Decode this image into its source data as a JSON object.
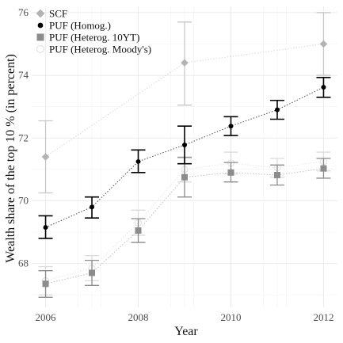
{
  "chart_data": {
    "type": "scatter",
    "xlabel": "Year",
    "ylabel": "Wealth share of the top  10 % (in percent)",
    "xlim": [
      2005.7,
      2012.3
    ],
    "ylim": [
      66.6,
      76.2
    ],
    "xticks": [
      2006,
      2008,
      2010,
      2012
    ],
    "yticks": [
      68,
      70,
      72,
      74,
      76
    ],
    "grid": true,
    "legend_position": "top-left",
    "series": [
      {
        "name": "SCF",
        "marker": "diamond",
        "color": "#b3b3b3",
        "line_color": "#d9d9d9",
        "x": [
          2006,
          2009,
          2012
        ],
        "y": [
          71.4,
          74.4,
          75.0
        ],
        "ci_low": [
          70.25,
          73.05,
          74.0
        ],
        "ci_high": [
          72.55,
          75.7,
          76.0
        ]
      },
      {
        "name": "PUF (Homog.)",
        "marker": "circle",
        "color": "#000000",
        "line_color": "#4d4d4d",
        "x": [
          2006,
          2007,
          2008,
          2009,
          2010,
          2011,
          2012
        ],
        "y": [
          69.15,
          69.8,
          71.25,
          71.78,
          72.38,
          72.9,
          73.62
        ],
        "ci_low": [
          68.8,
          69.45,
          70.9,
          71.18,
          72.08,
          72.6,
          73.3
        ],
        "ci_high": [
          69.52,
          70.12,
          71.62,
          72.38,
          72.68,
          73.2,
          73.93
        ]
      },
      {
        "name": "PUF (Heterog. 10YT)",
        "marker": "square",
        "color": "#8c8c8c",
        "line_color": "#bfbfbf",
        "x": [
          2006,
          2007,
          2008,
          2009,
          2010,
          2011,
          2012
        ],
        "y": [
          67.35,
          67.7,
          69.05,
          70.75,
          70.9,
          70.82,
          71.03
        ],
        "ci_low": [
          66.92,
          67.3,
          68.67,
          70.12,
          70.6,
          70.5,
          70.72
        ],
        "ci_high": [
          67.77,
          68.1,
          69.43,
          71.38,
          71.22,
          71.14,
          71.35
        ]
      },
      {
        "name": "PUF (Heterog. Moody's)",
        "marker": "circle-open",
        "color": "#e3e3e3",
        "line_color": "#e6e6e6",
        "x": [
          2006,
          2007,
          2008,
          2009,
          2010,
          2011,
          2012
        ],
        "y": [
          67.45,
          67.85,
          69.3,
          71.0,
          71.2,
          71.05,
          71.25
        ],
        "ci_low": [
          67.0,
          67.45,
          68.9,
          70.6,
          70.85,
          70.75,
          70.95
        ],
        "ci_high": [
          67.9,
          68.25,
          69.7,
          71.4,
          71.55,
          71.35,
          71.55
        ]
      }
    ]
  }
}
